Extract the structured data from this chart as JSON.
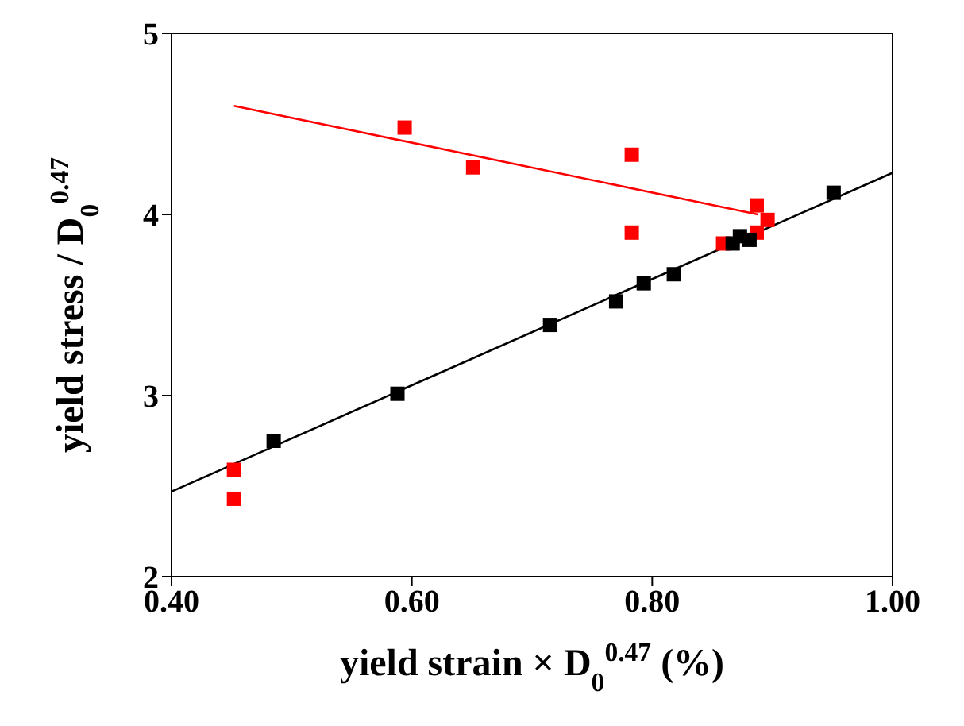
{
  "chart_data": {
    "type": "scatter",
    "xlabel": "yield strain × D$_{0}$$^{0.47}$ (%)",
    "ylabel": "yield stress / D$_{0}$$^{0.47}$",
    "xlim": [
      0.4,
      1.0
    ],
    "xticks": [
      {
        "value": 0.4,
        "label": "0.40"
      },
      {
        "value": 0.6,
        "label": "0.60"
      },
      {
        "value": 0.8,
        "label": "0.80"
      },
      {
        "value": 1.0,
        "label": "1.00"
      }
    ],
    "ylim": [
      2,
      5
    ],
    "yticks": [
      2,
      3,
      4,
      5
    ],
    "marker": "square",
    "series": [
      {
        "color": "#000000",
        "x": [
          0.485,
          0.588,
          0.715,
          0.77,
          0.793,
          0.818,
          0.867,
          0.873,
          0.881,
          0.951
        ],
        "values": [
          2.75,
          3.01,
          3.39,
          3.52,
          3.62,
          3.67,
          3.84,
          3.88,
          3.86,
          4.12
        ]
      },
      {
        "color": "#ff0000",
        "x": [
          0.452,
          0.452,
          0.594,
          0.651,
          0.783,
          0.783,
          0.859,
          0.887,
          0.887,
          0.896
        ],
        "values": [
          2.59,
          2.43,
          4.48,
          4.26,
          4.33,
          3.9,
          3.84,
          4.05,
          3.9,
          3.97
        ]
      },
      {
        "type": "line",
        "color": "#000000",
        "marker": "none",
        "x": [
          0.4,
          1.0
        ],
        "values": [
          2.47,
          4.23
        ]
      },
      {
        "type": "line",
        "color": "#ff0000",
        "marker": "none",
        "x": [
          0.452,
          0.888
        ],
        "values": [
          4.6,
          4.0
        ]
      }
    ]
  }
}
